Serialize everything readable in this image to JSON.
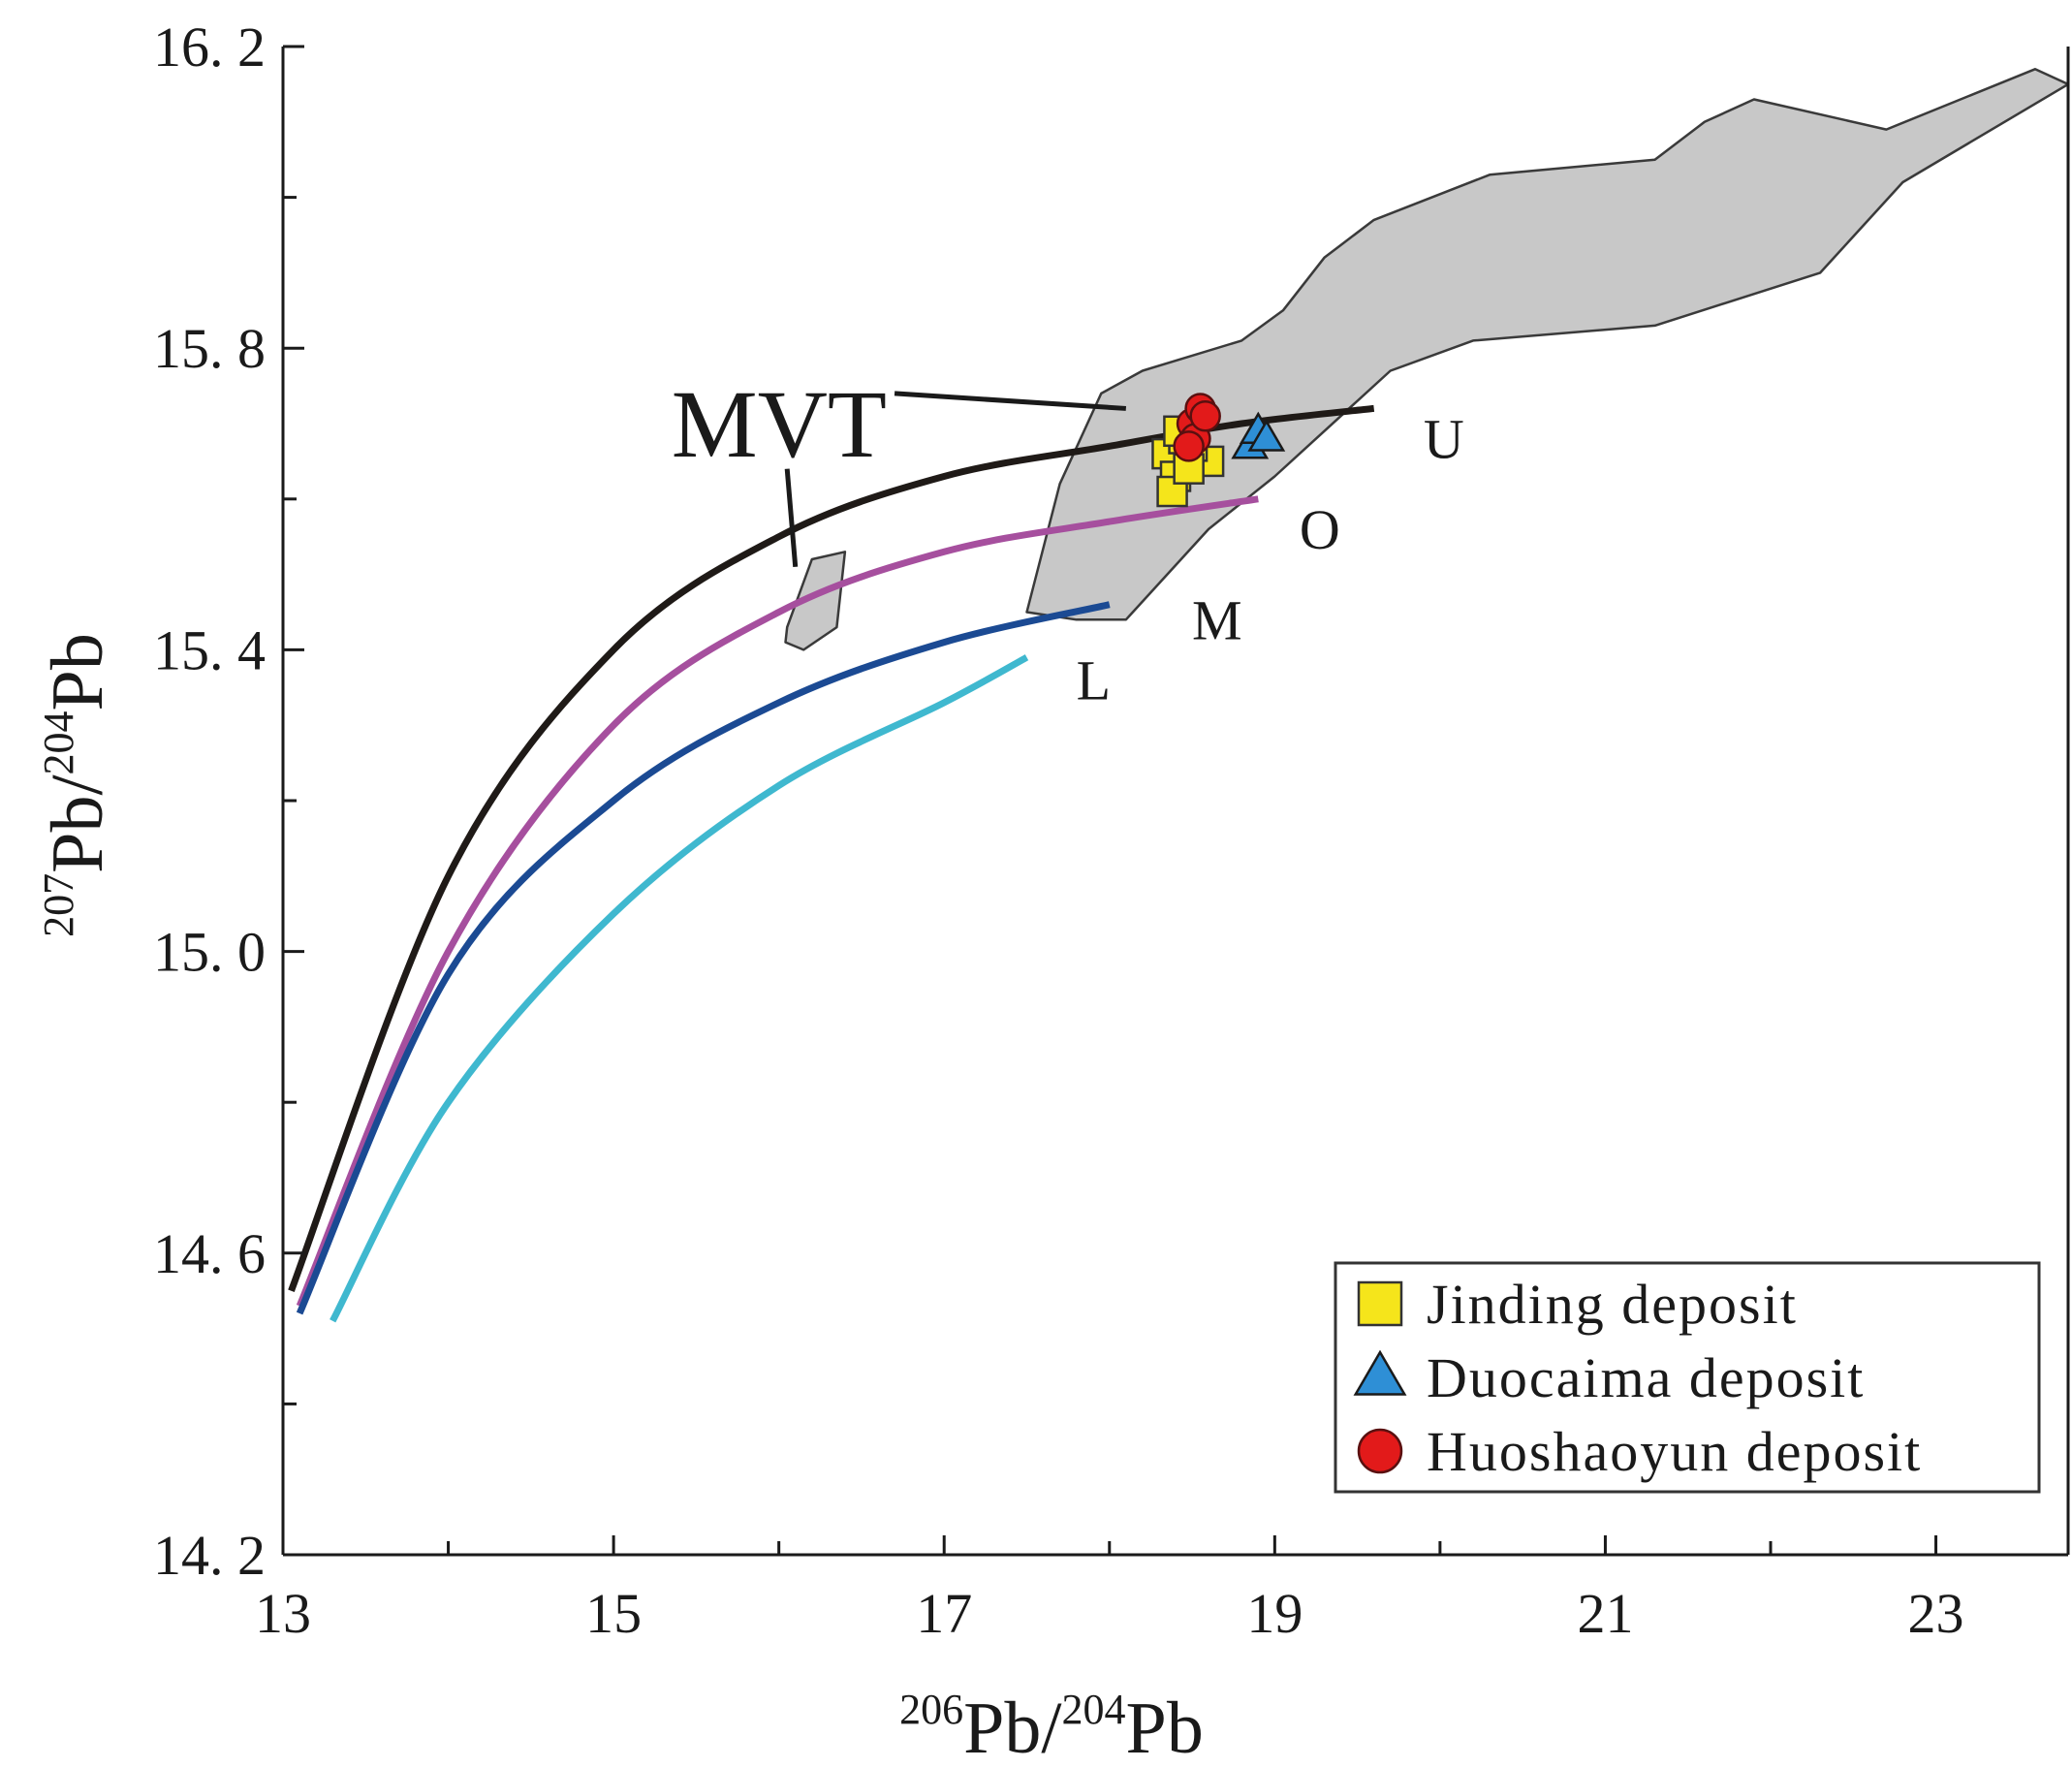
{
  "chart_data": {
    "type": "scatter",
    "title": "",
    "xlabel": {
      "sup1": "206",
      "base1": "Pb/",
      "sup2": "204",
      "base2": "Pb"
    },
    "ylabel": {
      "sup1": "207",
      "base1": "Pb/",
      "sup2": "204",
      "base2": "Pb"
    },
    "xlim": [
      13,
      23.8
    ],
    "ylim": [
      14.2,
      16.2
    ],
    "x_ticks": [
      13,
      15,
      17,
      19,
      21,
      23
    ],
    "x_tick_labels": [
      "13",
      "15",
      "17",
      "19",
      "21",
      "23"
    ],
    "x_minor_ticks": [
      14,
      16,
      18,
      20,
      22
    ],
    "y_ticks": [
      14.2,
      14.6,
      15.0,
      15.4,
      15.8,
      16.2
    ],
    "y_tick_labels": [
      "14. 2",
      "14. 6",
      "15. 0",
      "15. 4",
      "15. 8",
      "16. 2"
    ],
    "y_minor_ticks": [
      14.4,
      14.8,
      15.2,
      15.6,
      16.0
    ],
    "curves": [
      {
        "name": "U",
        "label": "U",
        "color": "#1f1a17",
        "points": [
          [
            13.05,
            14.55
          ],
          [
            14.0,
            15.1
          ],
          [
            15.0,
            15.4
          ],
          [
            16.0,
            15.55
          ],
          [
            17.0,
            15.63
          ],
          [
            18.0,
            15.67
          ],
          [
            18.8,
            15.7
          ],
          [
            19.6,
            15.72
          ]
        ],
        "label_at": [
          19.9,
          15.68
        ]
      },
      {
        "name": "O",
        "label": "O",
        "color": "#a64f9e",
        "points": [
          [
            13.1,
            14.53
          ],
          [
            14.0,
            15.0
          ],
          [
            15.0,
            15.3
          ],
          [
            16.0,
            15.45
          ],
          [
            17.0,
            15.53
          ],
          [
            18.0,
            15.57
          ],
          [
            18.9,
            15.6
          ]
        ],
        "label_at": [
          19.15,
          15.56
        ]
      },
      {
        "name": "M",
        "label": "M",
        "color": "#1b4a93",
        "points": [
          [
            13.1,
            14.52
          ],
          [
            14.0,
            14.97
          ],
          [
            15.0,
            15.2
          ],
          [
            16.0,
            15.33
          ],
          [
            17.0,
            15.41
          ],
          [
            18.0,
            15.46
          ]
        ],
        "label_at": [
          18.5,
          15.44
        ]
      },
      {
        "name": "L",
        "label": "L",
        "color": "#3fb8cf",
        "points": [
          [
            13.3,
            14.51
          ],
          [
            14.0,
            14.8
          ],
          [
            15.0,
            15.05
          ],
          [
            16.0,
            15.22
          ],
          [
            17.0,
            15.33
          ],
          [
            17.5,
            15.39
          ]
        ],
        "label_at": [
          17.8,
          15.36
        ]
      }
    ],
    "regions": [
      {
        "name": "MVT field large",
        "color": "#c8c8c8",
        "points": [
          [
            17.5,
            15.45
          ],
          [
            17.7,
            15.62
          ],
          [
            17.95,
            15.74
          ],
          [
            18.2,
            15.77
          ],
          [
            18.8,
            15.81
          ],
          [
            19.05,
            15.85
          ],
          [
            19.3,
            15.92
          ],
          [
            19.6,
            15.97
          ],
          [
            20.3,
            16.03
          ],
          [
            21.3,
            16.05
          ],
          [
            21.6,
            16.1
          ],
          [
            21.9,
            16.13
          ],
          [
            22.7,
            16.09
          ],
          [
            23.6,
            16.17
          ],
          [
            23.8,
            16.15
          ],
          [
            22.8,
            16.02
          ],
          [
            22.3,
            15.9
          ],
          [
            21.3,
            15.83
          ],
          [
            20.2,
            15.81
          ],
          [
            19.7,
            15.77
          ],
          [
            19.0,
            15.63
          ],
          [
            18.6,
            15.56
          ],
          [
            18.1,
            15.44
          ],
          [
            17.8,
            15.44
          ]
        ]
      },
      {
        "name": "MVT field small",
        "color": "#c8c8c8",
        "points": [
          [
            16.05,
            15.43
          ],
          [
            16.2,
            15.52
          ],
          [
            16.4,
            15.53
          ],
          [
            16.35,
            15.43
          ],
          [
            16.15,
            15.4
          ],
          [
            16.04,
            15.41
          ]
        ]
      }
    ],
    "annotations": [
      {
        "text": "MVT",
        "at": [
          15.35,
          15.7
        ]
      },
      {
        "type": "pointer",
        "from": [
          16.7,
          15.74
        ],
        "to": [
          18.1,
          15.72
        ]
      },
      {
        "type": "pointer",
        "from": [
          16.05,
          15.64
        ],
        "to": [
          16.1,
          15.51
        ]
      }
    ],
    "series": [
      {
        "name": "Jinding deposit",
        "marker": "square",
        "color": "#f5e51b",
        "x": [
          18.35,
          18.45,
          18.6,
          18.4,
          18.5,
          18.38,
          18.42,
          18.48
        ],
        "y": [
          15.66,
          15.68,
          15.65,
          15.63,
          15.67,
          15.61,
          15.69,
          15.64
        ]
      },
      {
        "name": "Duocaima deposit",
        "marker": "triangle",
        "color": "#2e8fd6",
        "x": [
          18.85,
          18.9,
          18.95
        ],
        "y": [
          15.67,
          15.69,
          15.68
        ]
      },
      {
        "name": "Huoshaoyun deposit",
        "marker": "circle",
        "color": "#e21a1a",
        "x": [
          18.5,
          18.55,
          18.52,
          18.48,
          18.58
        ],
        "y": [
          15.7,
          15.72,
          15.68,
          15.67,
          15.71
        ]
      }
    ],
    "legend_position": "bottom-right"
  }
}
